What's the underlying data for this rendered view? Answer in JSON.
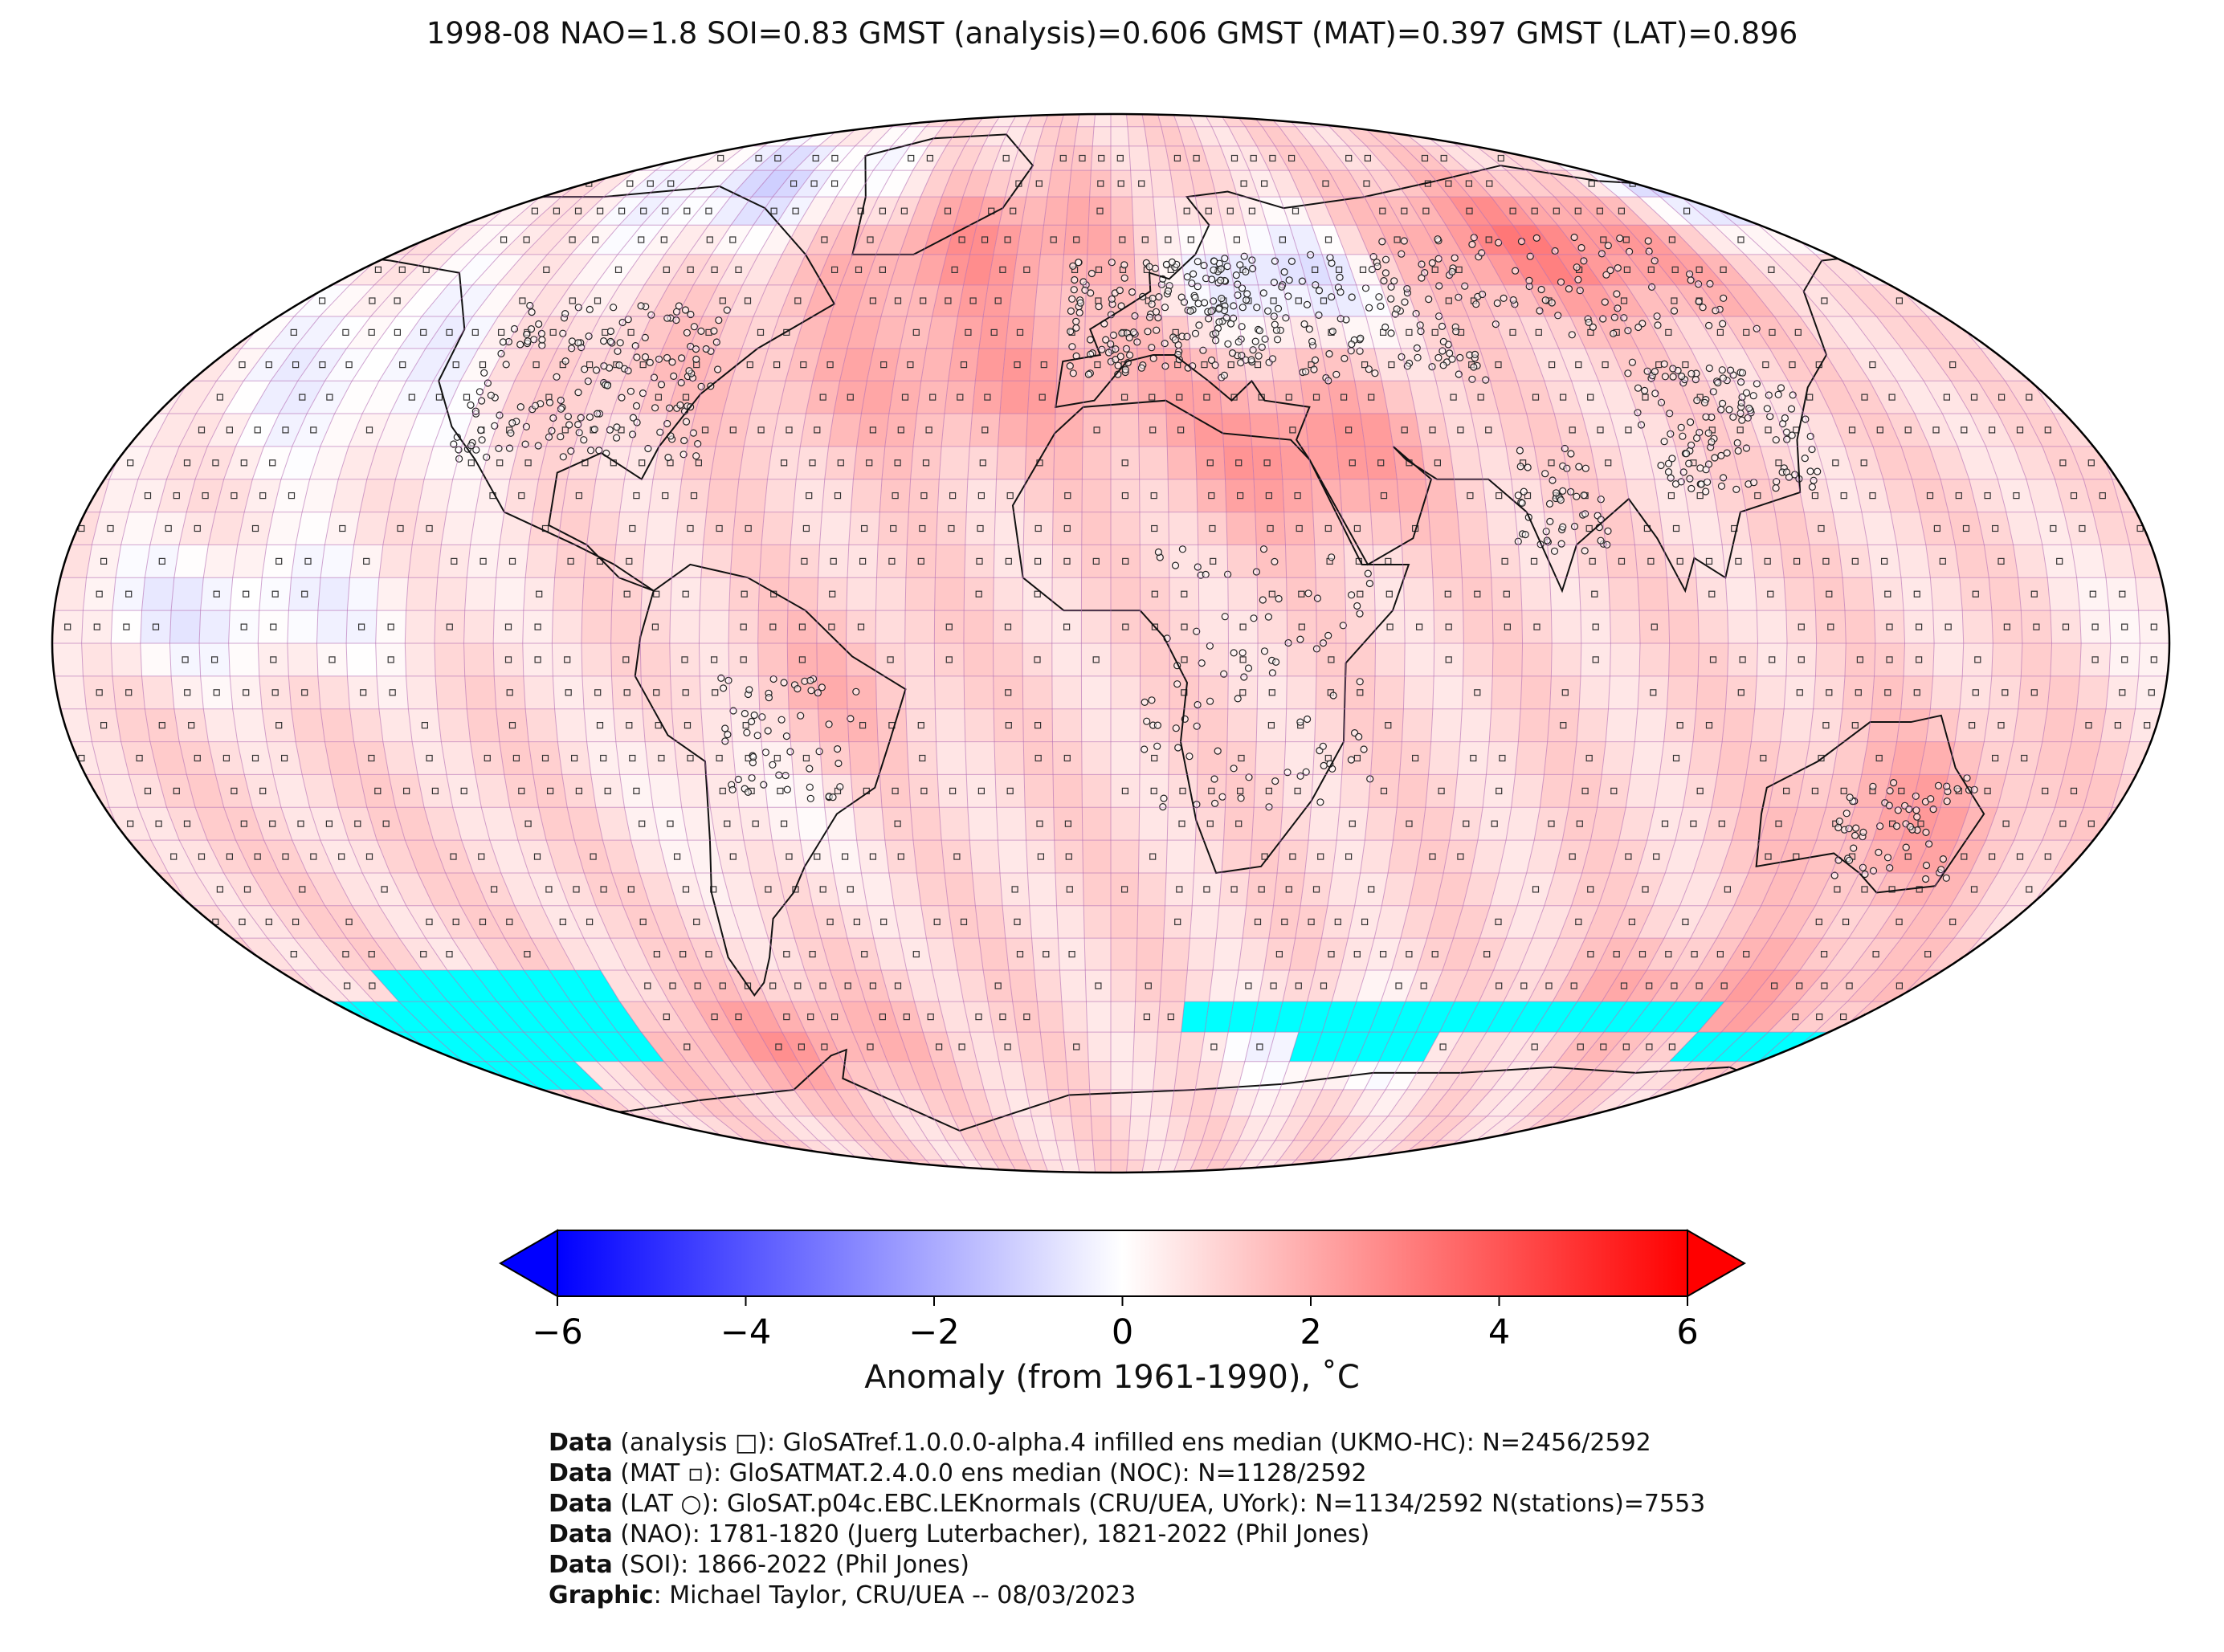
{
  "title": "1998-08 NAO=1.8 SOI=0.83 GMST (analysis)=0.606 GMST (MAT)=0.397 GMST (LAT)=0.896",
  "map": {
    "projection": "Robinson",
    "gridlines": "5-degree",
    "no_data_color": "#00ffff",
    "grid_color": "#b36ab3",
    "overlays": [
      "analysis-squares",
      "MAT-squares",
      "LAT-station-circles",
      "coastlines"
    ]
  },
  "colorbar": {
    "label": "Anomaly (from 1961-1990), ˚C",
    "ticks": [
      "−6",
      "−4",
      "−2",
      "0",
      "2",
      "4",
      "6"
    ],
    "range": [
      -6,
      6
    ],
    "colors": {
      "min": "#0000ff",
      "mid": "#ffffff",
      "max": "#ff0000"
    },
    "extend": "both"
  },
  "credits": [
    {
      "key": "Data",
      "text": " (analysis □): GloSATref.1.0.0.0-alpha.4 infilled ens median (UKMO-HC): N=2456/2592"
    },
    {
      "key": "Data",
      "text": " (MAT ▫): GloSATMAT.2.4.0.0 ens median (NOC): N=1128/2592"
    },
    {
      "key": "Data",
      "text": " (LAT ○): GloSAT.p04c.EBC.LEKnormals (CRU/UEA, UYork): N=1134/2592 N(stations)=7553"
    },
    {
      "key": "Data",
      "text": " (NAO): 1781-1820 (Juerg Luterbacher), 1821-2022 (Phil Jones)"
    },
    {
      "key": "Data",
      "text": " (SOI): 1866-2022 (Phil Jones)"
    },
    {
      "key": "Graphic",
      "text": ": Michael Taylor, CRU/UEA -- 08/03/2023"
    }
  ]
}
